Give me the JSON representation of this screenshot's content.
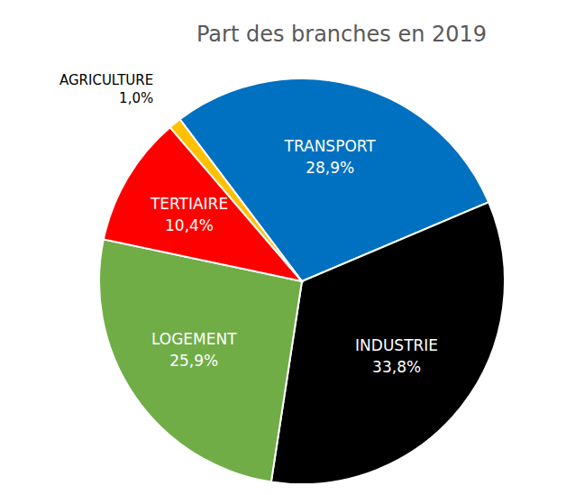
{
  "chart_data": {
    "type": "pie",
    "title": "Part des branches en 2019",
    "categories": [
      "TRANSPORT",
      "INDUSTRIE",
      "LOGEMENT",
      "TERTIAIRE",
      "AGRICULTURE"
    ],
    "values": [
      28.9,
      33.8,
      25.9,
      10.4,
      1.0
    ],
    "value_labels": [
      "28,9%",
      "33,8%",
      "25,9%",
      "10,4%",
      "1,0%"
    ],
    "colors": [
      "#0070C0",
      "#000000",
      "#70AD47",
      "#FF0000",
      "#FFC000"
    ],
    "data_labels": true
  }
}
